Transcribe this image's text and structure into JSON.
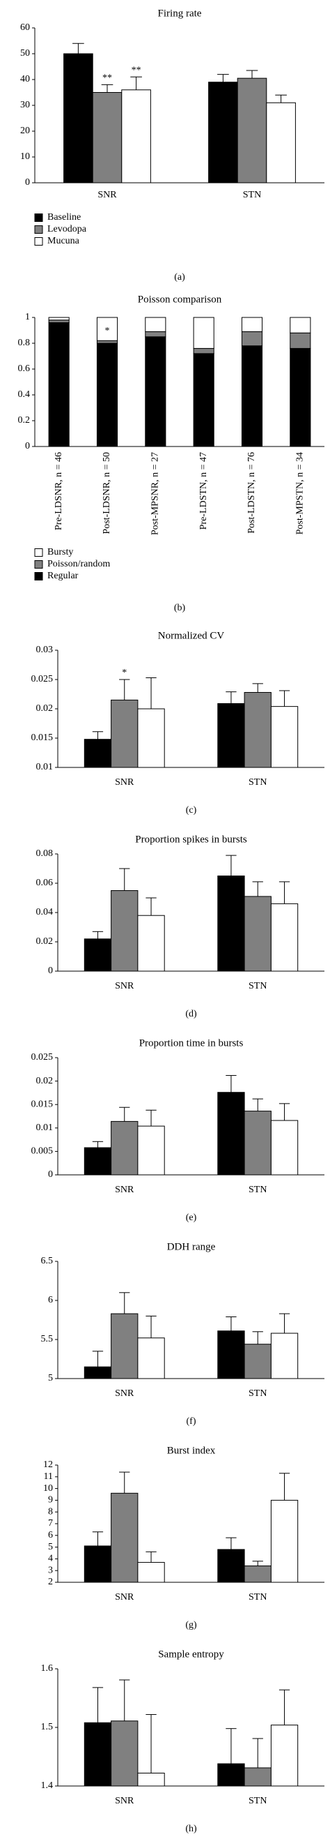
{
  "chart_data": [
    {
      "type": "bar",
      "title": "Firing rate",
      "label": "(a)",
      "categories": [
        "SNR",
        "STN"
      ],
      "ylim": [
        0,
        60
      ],
      "yticks": [
        0,
        10,
        20,
        30,
        40,
        50,
        60
      ],
      "series": [
        {
          "name": "Baseline",
          "color": "#000000",
          "values": [
            50,
            39
          ],
          "errors": [
            4,
            3
          ]
        },
        {
          "name": "Levodopa",
          "color": "#808080",
          "values": [
            35,
            40.5
          ],
          "errors": [
            3,
            3
          ],
          "annotations": [
            "**",
            null
          ]
        },
        {
          "name": "Mucuna",
          "color": "#ffffff",
          "values": [
            36,
            31
          ],
          "errors": [
            5,
            3
          ],
          "annotations": [
            "**",
            null
          ]
        }
      ],
      "legend": true
    },
    {
      "type": "stacked_bar",
      "title": "Poisson comparison",
      "label": "(b)",
      "categories": [
        "Pre-LDSNR, n = 46",
        "Post-LDSNR, n = 50",
        "Post-MPSNR, n = 27",
        "Pre-LDSTN, n = 47",
        "Post-LDSTN, n = 76",
        "Post-MPSTN, n = 34"
      ],
      "ylim": [
        0,
        1
      ],
      "yticks": [
        0,
        0.2,
        0.4,
        0.6,
        0.8,
        1
      ],
      "series": [
        {
          "name": "Regular",
          "color": "#000000",
          "values": [
            0.96,
            0.8,
            0.85,
            0.72,
            0.78,
            0.76
          ]
        },
        {
          "name": "Poisson/random",
          "color": "#808080",
          "values": [
            0.02,
            0.02,
            0.04,
            0.04,
            0.11,
            0.12
          ]
        },
        {
          "name": "Bursty",
          "color": "#ffffff",
          "values": [
            0.02,
            0.18,
            0.11,
            0.24,
            0.11,
            0.12
          ],
          "annotations": [
            null,
            "*",
            null,
            null,
            null,
            null
          ]
        }
      ],
      "legend": true
    },
    {
      "type": "bar",
      "title": "Normalized CV",
      "label": "(c)",
      "categories": [
        "SNR",
        "STN"
      ],
      "ylim": [
        0.01,
        0.03
      ],
      "yticks": [
        0.01,
        0.015,
        0.02,
        0.025,
        0.03
      ],
      "series": [
        {
          "name": "Baseline",
          "color": "#000000",
          "values": [
            0.0148,
            0.0209
          ],
          "errors": [
            0.0013,
            0.002
          ]
        },
        {
          "name": "Levodopa",
          "color": "#808080",
          "values": [
            0.0215,
            0.0228
          ],
          "errors": [
            0.0035,
            0.0015
          ],
          "annotations": [
            "*",
            null
          ]
        },
        {
          "name": "Mucuna",
          "color": "#ffffff",
          "values": [
            0.02,
            0.0204
          ],
          "errors": [
            0.0053,
            0.0027
          ]
        }
      ]
    },
    {
      "type": "bar",
      "title": "Proportion spikes in bursts",
      "label": "(d)",
      "categories": [
        "SNR",
        "STN"
      ],
      "ylim": [
        0,
        0.08
      ],
      "yticks": [
        0,
        0.02,
        0.04,
        0.06,
        0.08
      ],
      "series": [
        {
          "name": "Baseline",
          "color": "#000000",
          "values": [
            0.022,
            0.065
          ],
          "errors": [
            0.005,
            0.014
          ]
        },
        {
          "name": "Levodopa",
          "color": "#808080",
          "values": [
            0.055,
            0.051
          ],
          "errors": [
            0.015,
            0.01
          ]
        },
        {
          "name": "Mucuna",
          "color": "#ffffff",
          "values": [
            0.038,
            0.046
          ],
          "errors": [
            0.012,
            0.015
          ]
        }
      ]
    },
    {
      "type": "bar",
      "title": "Proportion time in bursts",
      "label": "(e)",
      "categories": [
        "SNR",
        "STN"
      ],
      "ylim": [
        0,
        0.025
      ],
      "yticks": [
        0,
        0.005,
        0.01,
        0.015,
        0.02,
        0.025
      ],
      "series": [
        {
          "name": "Baseline",
          "color": "#000000",
          "values": [
            0.0058,
            0.0176
          ],
          "errors": [
            0.0013,
            0.0036
          ]
        },
        {
          "name": "Levodopa",
          "color": "#808080",
          "values": [
            0.0114,
            0.0136
          ],
          "errors": [
            0.003,
            0.0026
          ]
        },
        {
          "name": "Mucuna",
          "color": "#ffffff",
          "values": [
            0.0104,
            0.0116
          ],
          "errors": [
            0.0034,
            0.0036
          ]
        }
      ]
    },
    {
      "type": "bar",
      "title": "DDH range",
      "label": "(f)",
      "categories": [
        "SNR",
        "STN"
      ],
      "ylim": [
        5,
        6.5
      ],
      "yticks": [
        5,
        5.5,
        6,
        6.5
      ],
      "series": [
        {
          "name": "Baseline",
          "color": "#000000",
          "values": [
            5.15,
            5.61
          ],
          "errors": [
            0.2,
            0.18
          ]
        },
        {
          "name": "Levodopa",
          "color": "#808080",
          "values": [
            5.83,
            5.44
          ],
          "errors": [
            0.27,
            0.16
          ]
        },
        {
          "name": "Mucuna",
          "color": "#ffffff",
          "values": [
            5.52,
            5.58
          ],
          "errors": [
            0.28,
            0.25
          ]
        }
      ]
    },
    {
      "type": "bar",
      "title": "Burst index",
      "label": "(g)",
      "categories": [
        "SNR",
        "STN"
      ],
      "ylim": [
        2,
        12
      ],
      "yticks": [
        2,
        3,
        4,
        5,
        6,
        7,
        8,
        9,
        10,
        11,
        12
      ],
      "series": [
        {
          "name": "Baseline",
          "color": "#000000",
          "values": [
            5.1,
            4.8
          ],
          "errors": [
            1.2,
            1
          ]
        },
        {
          "name": "Levodopa",
          "color": "#808080",
          "values": [
            9.6,
            3.4
          ],
          "errors": [
            1.8,
            0.4
          ]
        },
        {
          "name": "Mucuna",
          "color": "#ffffff",
          "values": [
            3.7,
            9
          ],
          "errors": [
            0.9,
            2.3
          ]
        }
      ]
    },
    {
      "type": "bar",
      "title": "Sample entropy",
      "label": "(h)",
      "categories": [
        "SNR",
        "STN"
      ],
      "ylim": [
        1.4,
        1.6
      ],
      "yticks": [
        1.4,
        1.5,
        1.6
      ],
      "series": [
        {
          "name": "Baseline",
          "color": "#000000",
          "values": [
            1.508,
            1.438
          ],
          "errors": [
            0.06,
            0.06
          ]
        },
        {
          "name": "Levodopa",
          "color": "#808080",
          "values": [
            1.511,
            1.431
          ],
          "errors": [
            0.07,
            0.05
          ]
        },
        {
          "name": "Mucuna",
          "color": "#ffffff",
          "values": [
            1.422,
            1.504
          ],
          "errors": [
            0.1,
            0.06
          ]
        }
      ]
    }
  ]
}
